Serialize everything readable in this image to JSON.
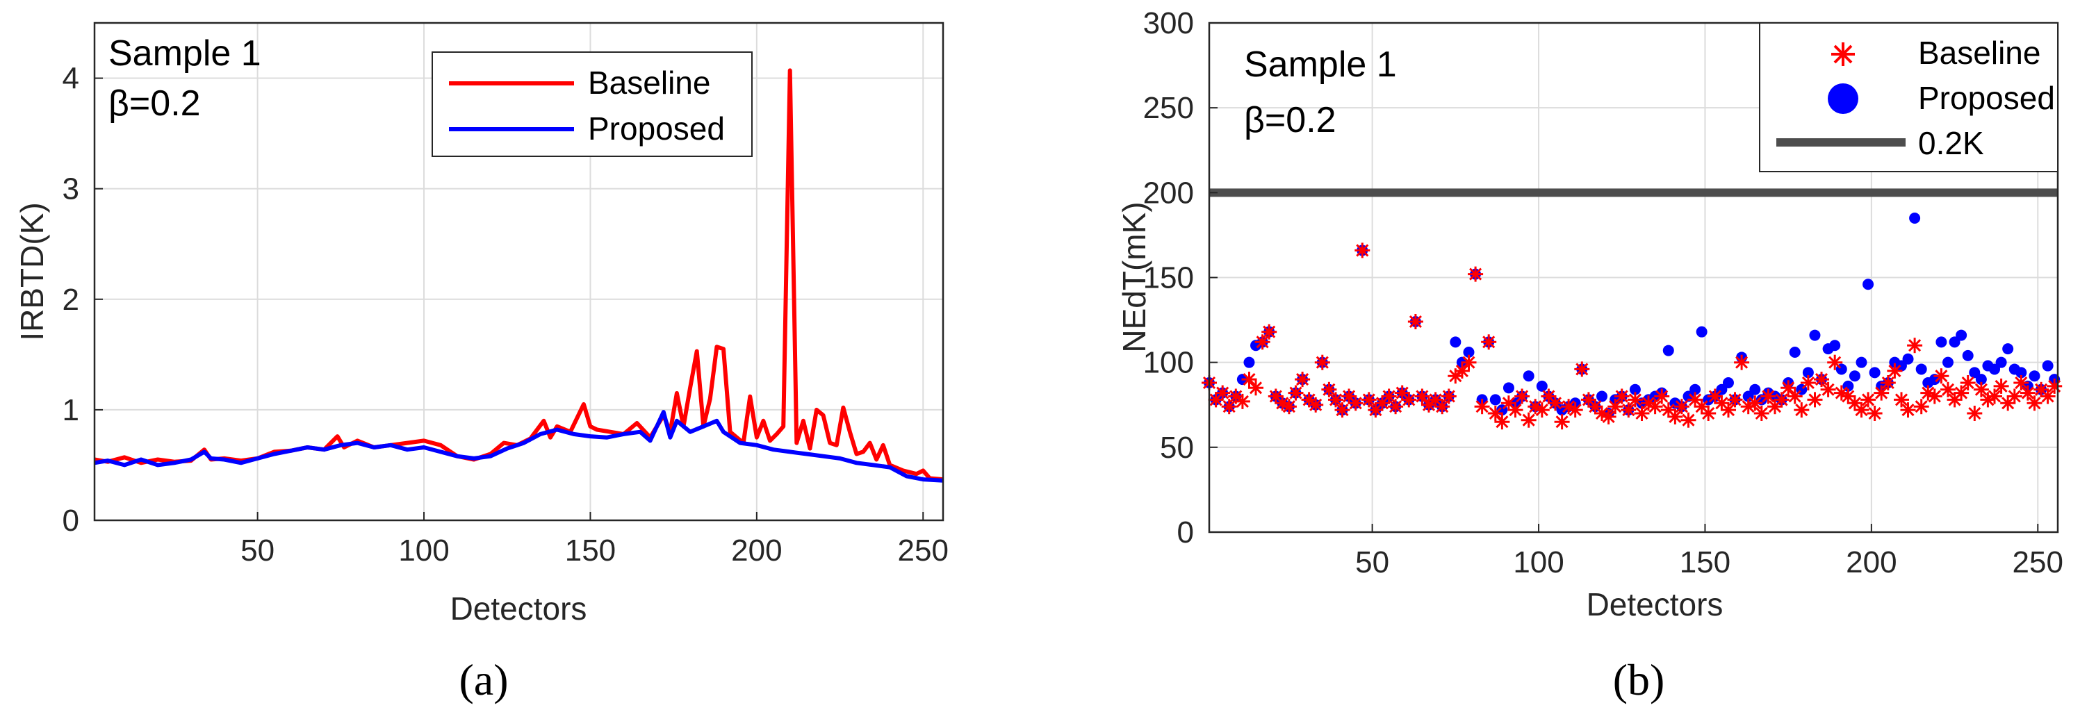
{
  "colors": {
    "baseline": "#ff0000",
    "proposed": "#0000ff",
    "threshold": "#4d4d4d",
    "grid": "#dcdcdc"
  },
  "chart_data": [
    {
      "type": "line",
      "panel_label": "(a)",
      "xlabel": "Detectors",
      "ylabel": "IRBTD(K)",
      "xlim": [
        1,
        256
      ],
      "ylim": [
        0,
        4.5
      ],
      "xticks": [
        50,
        100,
        150,
        200,
        250
      ],
      "yticks": [
        0,
        1,
        2,
        3,
        4
      ],
      "grid": true,
      "annotations": [
        "Sample 1",
        "β=0.2"
      ],
      "legend": {
        "position": "top-right",
        "entries": [
          "Baseline",
          "Proposed"
        ]
      },
      "series": [
        {
          "name": "Baseline",
          "x": [
            1,
            5,
            10,
            15,
            20,
            25,
            30,
            34,
            36,
            40,
            45,
            50,
            55,
            60,
            65,
            70,
            74,
            76,
            80,
            85,
            90,
            95,
            100,
            105,
            110,
            115,
            120,
            124,
            128,
            132,
            136,
            138,
            140,
            144,
            148,
            150,
            152,
            156,
            160,
            164,
            168,
            172,
            174,
            176,
            178,
            180,
            182,
            184,
            186,
            188,
            190,
            192,
            194,
            196,
            198,
            200,
            202,
            204,
            206,
            208,
            210,
            212,
            214,
            216,
            218,
            220,
            222,
            224,
            226,
            228,
            230,
            232,
            234,
            236,
            238,
            240,
            244,
            248,
            250,
            252,
            256
          ],
          "values": [
            0.55,
            0.53,
            0.57,
            0.52,
            0.55,
            0.53,
            0.54,
            0.64,
            0.55,
            0.56,
            0.54,
            0.56,
            0.62,
            0.63,
            0.66,
            0.64,
            0.76,
            0.66,
            0.72,
            0.66,
            0.68,
            0.7,
            0.72,
            0.68,
            0.58,
            0.55,
            0.6,
            0.7,
            0.68,
            0.74,
            0.9,
            0.75,
            0.85,
            0.8,
            1.05,
            0.85,
            0.82,
            0.8,
            0.78,
            0.88,
            0.75,
            0.95,
            0.8,
            1.15,
            0.85,
            1.2,
            1.53,
            0.85,
            1.1,
            1.57,
            1.55,
            0.8,
            0.75,
            0.7,
            1.12,
            0.75,
            0.9,
            0.72,
            0.78,
            0.85,
            4.07,
            0.7,
            0.9,
            0.65,
            1.0,
            0.95,
            0.7,
            0.68,
            1.02,
            0.8,
            0.6,
            0.62,
            0.7,
            0.55,
            0.68,
            0.5,
            0.45,
            0.42,
            0.45,
            0.38,
            0.37
          ]
        },
        {
          "name": "Proposed",
          "x": [
            1,
            5,
            10,
            15,
            20,
            25,
            30,
            34,
            36,
            40,
            45,
            50,
            55,
            60,
            65,
            70,
            75,
            80,
            85,
            90,
            95,
            100,
            105,
            110,
            115,
            120,
            125,
            130,
            135,
            140,
            145,
            150,
            155,
            160,
            165,
            168,
            172,
            174,
            176,
            180,
            184,
            188,
            190,
            195,
            200,
            205,
            210,
            215,
            220,
            225,
            230,
            235,
            240,
            245,
            250,
            256
          ],
          "values": [
            0.52,
            0.54,
            0.5,
            0.55,
            0.5,
            0.52,
            0.55,
            0.62,
            0.56,
            0.55,
            0.52,
            0.56,
            0.6,
            0.63,
            0.66,
            0.64,
            0.68,
            0.7,
            0.66,
            0.68,
            0.64,
            0.66,
            0.62,
            0.58,
            0.56,
            0.58,
            0.65,
            0.7,
            0.78,
            0.82,
            0.78,
            0.76,
            0.75,
            0.78,
            0.8,
            0.72,
            0.98,
            0.75,
            0.9,
            0.8,
            0.85,
            0.9,
            0.8,
            0.7,
            0.68,
            0.64,
            0.62,
            0.6,
            0.58,
            0.56,
            0.52,
            0.5,
            0.48,
            0.4,
            0.37,
            0.36
          ]
        }
      ]
    },
    {
      "type": "scatter",
      "panel_label": "(b)",
      "xlabel": "Detectors",
      "ylabel": "NEdT(mK)",
      "xlim": [
        1,
        256
      ],
      "ylim": [
        0,
        300
      ],
      "xticks": [
        50,
        100,
        150,
        200,
        250
      ],
      "yticks": [
        0,
        50,
        100,
        150,
        200,
        250,
        300
      ],
      "grid": true,
      "annotations": [
        "Sample 1",
        "β=0.2"
      ],
      "legend": {
        "position": "top-right",
        "entries": [
          "Baseline",
          "Proposed",
          "0.2K"
        ]
      },
      "threshold": {
        "name": "0.2K",
        "value": 200
      },
      "series": [
        {
          "name": "Baseline",
          "marker": "asterisk",
          "points": []
        },
        {
          "name": "Proposed",
          "marker": "dot",
          "points": []
        }
      ]
    }
  ],
  "nedt_points": {
    "baseline": [
      [
        1,
        88
      ],
      [
        3,
        78
      ],
      [
        5,
        82
      ],
      [
        7,
        74
      ],
      [
        9,
        80
      ],
      [
        11,
        77
      ],
      [
        13,
        90
      ],
      [
        15,
        85
      ],
      [
        17,
        112
      ],
      [
        19,
        118
      ],
      [
        21,
        80
      ],
      [
        23,
        76
      ],
      [
        25,
        74
      ],
      [
        27,
        82
      ],
      [
        29,
        90
      ],
      [
        31,
        78
      ],
      [
        33,
        75
      ],
      [
        35,
        100
      ],
      [
        37,
        84
      ],
      [
        39,
        78
      ],
      [
        41,
        72
      ],
      [
        43,
        80
      ],
      [
        45,
        76
      ],
      [
        47,
        166
      ],
      [
        49,
        78
      ],
      [
        51,
        72
      ],
      [
        53,
        76
      ],
      [
        55,
        80
      ],
      [
        57,
        74
      ],
      [
        59,
        82
      ],
      [
        61,
        78
      ],
      [
        63,
        124
      ],
      [
        65,
        80
      ],
      [
        67,
        75
      ],
      [
        69,
        78
      ],
      [
        71,
        74
      ],
      [
        73,
        80
      ],
      [
        75,
        92
      ],
      [
        77,
        95
      ],
      [
        79,
        100
      ],
      [
        81,
        152
      ],
      [
        83,
        74
      ],
      [
        85,
        112
      ],
      [
        87,
        70
      ],
      [
        89,
        65
      ],
      [
        91,
        76
      ],
      [
        93,
        72
      ],
      [
        95,
        80
      ],
      [
        97,
        66
      ],
      [
        99,
        74
      ],
      [
        101,
        72
      ],
      [
        103,
        80
      ],
      [
        105,
        76
      ],
      [
        107,
        65
      ],
      [
        109,
        74
      ],
      [
        111,
        72
      ],
      [
        113,
        96
      ],
      [
        115,
        78
      ],
      [
        117,
        74
      ],
      [
        119,
        70
      ],
      [
        121,
        68
      ],
      [
        123,
        74
      ],
      [
        125,
        80
      ],
      [
        127,
        72
      ],
      [
        129,
        78
      ],
      [
        131,
        70
      ],
      [
        133,
        76
      ],
      [
        135,
        74
      ],
      [
        137,
        80
      ],
      [
        139,
        72
      ],
      [
        141,
        68
      ],
      [
        143,
        74
      ],
      [
        145,
        66
      ],
      [
        147,
        78
      ],
      [
        149,
        74
      ],
      [
        151,
        70
      ],
      [
        153,
        80
      ],
      [
        155,
        76
      ],
      [
        157,
        72
      ],
      [
        159,
        78
      ],
      [
        161,
        100
      ],
      [
        163,
        74
      ],
      [
        165,
        76
      ],
      [
        167,
        70
      ],
      [
        169,
        80
      ],
      [
        171,
        74
      ],
      [
        173,
        78
      ],
      [
        175,
        85
      ],
      [
        177,
        80
      ],
      [
        179,
        72
      ],
      [
        181,
        88
      ],
      [
        183,
        78
      ],
      [
        185,
        90
      ],
      [
        187,
        84
      ],
      [
        189,
        100
      ],
      [
        191,
        82
      ],
      [
        193,
        80
      ],
      [
        195,
        76
      ],
      [
        197,
        72
      ],
      [
        199,
        78
      ],
      [
        201,
        70
      ],
      [
        203,
        82
      ],
      [
        205,
        88
      ],
      [
        207,
        95
      ],
      [
        209,
        78
      ],
      [
        211,
        72
      ],
      [
        213,
        110
      ],
      [
        215,
        74
      ],
      [
        217,
        82
      ],
      [
        219,
        80
      ],
      [
        221,
        92
      ],
      [
        223,
        84
      ],
      [
        225,
        78
      ],
      [
        227,
        82
      ],
      [
        229,
        88
      ],
      [
        231,
        70
      ],
      [
        233,
        84
      ],
      [
        235,
        78
      ],
      [
        237,
        80
      ],
      [
        239,
        86
      ],
      [
        241,
        76
      ],
      [
        243,
        80
      ],
      [
        245,
        88
      ],
      [
        247,
        82
      ],
      [
        249,
        76
      ],
      [
        251,
        84
      ],
      [
        253,
        80
      ],
      [
        255,
        86
      ]
    ],
    "proposed": [
      [
        1,
        88
      ],
      [
        3,
        78
      ],
      [
        5,
        82
      ],
      [
        7,
        74
      ],
      [
        9,
        80
      ],
      [
        11,
        90
      ],
      [
        13,
        100
      ],
      [
        15,
        110
      ],
      [
        17,
        112
      ],
      [
        19,
        118
      ],
      [
        21,
        80
      ],
      [
        23,
        76
      ],
      [
        25,
        74
      ],
      [
        27,
        82
      ],
      [
        29,
        90
      ],
      [
        31,
        78
      ],
      [
        33,
        75
      ],
      [
        35,
        100
      ],
      [
        37,
        84
      ],
      [
        39,
        78
      ],
      [
        41,
        72
      ],
      [
        43,
        80
      ],
      [
        45,
        76
      ],
      [
        47,
        166
      ],
      [
        49,
        78
      ],
      [
        51,
        72
      ],
      [
        53,
        76
      ],
      [
        55,
        80
      ],
      [
        57,
        74
      ],
      [
        59,
        82
      ],
      [
        61,
        78
      ],
      [
        63,
        124
      ],
      [
        65,
        80
      ],
      [
        67,
        75
      ],
      [
        69,
        78
      ],
      [
        71,
        74
      ],
      [
        73,
        80
      ],
      [
        75,
        112
      ],
      [
        77,
        100
      ],
      [
        79,
        106
      ],
      [
        81,
        152
      ],
      [
        83,
        78
      ],
      [
        85,
        112
      ],
      [
        87,
        78
      ],
      [
        89,
        72
      ],
      [
        91,
        85
      ],
      [
        93,
        76
      ],
      [
        95,
        80
      ],
      [
        97,
        92
      ],
      [
        99,
        74
      ],
      [
        101,
        86
      ],
      [
        103,
        80
      ],
      [
        105,
        76
      ],
      [
        107,
        72
      ],
      [
        109,
        74
      ],
      [
        111,
        76
      ],
      [
        113,
        96
      ],
      [
        115,
        78
      ],
      [
        117,
        74
      ],
      [
        119,
        80
      ],
      [
        121,
        70
      ],
      [
        123,
        78
      ],
      [
        125,
        80
      ],
      [
        127,
        72
      ],
      [
        129,
        84
      ],
      [
        131,
        76
      ],
      [
        133,
        78
      ],
      [
        135,
        80
      ],
      [
        137,
        82
      ],
      [
        139,
        107
      ],
      [
        141,
        76
      ],
      [
        143,
        74
      ],
      [
        145,
        80
      ],
      [
        147,
        84
      ],
      [
        149,
        118
      ],
      [
        151,
        78
      ],
      [
        153,
        80
      ],
      [
        155,
        84
      ],
      [
        157,
        88
      ],
      [
        159,
        78
      ],
      [
        161,
        103
      ],
      [
        163,
        80
      ],
      [
        165,
        84
      ],
      [
        167,
        78
      ],
      [
        169,
        82
      ],
      [
        171,
        80
      ],
      [
        173,
        78
      ],
      [
        175,
        88
      ],
      [
        177,
        106
      ],
      [
        179,
        84
      ],
      [
        181,
        94
      ],
      [
        183,
        116
      ],
      [
        185,
        90
      ],
      [
        187,
        108
      ],
      [
        189,
        110
      ],
      [
        191,
        96
      ],
      [
        193,
        86
      ],
      [
        195,
        92
      ],
      [
        197,
        100
      ],
      [
        199,
        146
      ],
      [
        201,
        94
      ],
      [
        203,
        86
      ],
      [
        205,
        88
      ],
      [
        207,
        100
      ],
      [
        209,
        98
      ],
      [
        211,
        102
      ],
      [
        213,
        185
      ],
      [
        215,
        96
      ],
      [
        217,
        88
      ],
      [
        219,
        90
      ],
      [
        221,
        112
      ],
      [
        223,
        100
      ],
      [
        225,
        112
      ],
      [
        227,
        116
      ],
      [
        229,
        104
      ],
      [
        231,
        94
      ],
      [
        233,
        90
      ],
      [
        235,
        98
      ],
      [
        237,
        96
      ],
      [
        239,
        100
      ],
      [
        241,
        108
      ],
      [
        243,
        96
      ],
      [
        245,
        94
      ],
      [
        247,
        86
      ],
      [
        249,
        92
      ],
      [
        251,
        84
      ],
      [
        253,
        98
      ],
      [
        255,
        90
      ]
    ]
  }
}
